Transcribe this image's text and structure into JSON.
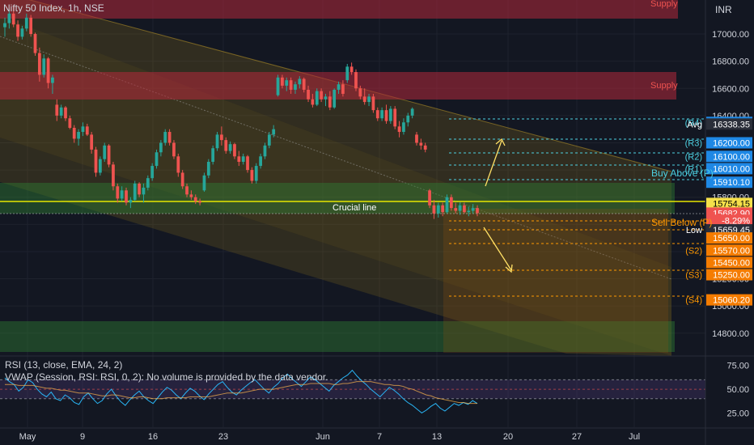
{
  "header": {
    "title": "Nifty 50 Index, 1h, NSE",
    "currency": "INR"
  },
  "colors": {
    "background": "#131722",
    "up": "#26a69a",
    "down": "#ef5350",
    "supply_zone": "#b2283a",
    "demand_zone": "#2e7d32",
    "channel": "#a0801a",
    "pivot_line_top": "#4dd0e1",
    "pivot_line_bottom": "#ff9800",
    "crucial_line": "#e6e600",
    "rsi_line": "#29b6f6"
  },
  "chart_data": {
    "type": "candlestick",
    "symbol": "Nifty 50 Index",
    "timeframe": "1h",
    "exchange": "NSE",
    "y_axis": {
      "ticks": [
        "17000.00",
        "16800.00",
        "16600.00",
        "16400.00",
        "16200.00",
        "16000.00",
        "15800.00",
        "15600.00",
        "15400.00",
        "15200.00",
        "15000.00",
        "14800.00"
      ],
      "range": [
        14650,
        17250
      ]
    },
    "x_axis": {
      "ticks": [
        "May",
        "9",
        "16",
        "23",
        "Jun",
        "7",
        "13",
        "20",
        "27",
        "Jul"
      ]
    },
    "annotations": {
      "supply_label": "Supply",
      "crucial_line_label": "Crucial line",
      "buy_above_label": "Buy Above (P)",
      "sell_below_label": "Sell Below (P)"
    },
    "levels": [
      {
        "label": "(R4)",
        "value": "16350.00",
        "price": 16350,
        "text_color": "#4dd0e1",
        "box_color": "#1e88e5"
      },
      {
        "label": "Avg",
        "value": "16338.35",
        "price": 16338,
        "text_color": "#ffffff",
        "box_color": "#2a2e39"
      },
      {
        "label": "(R3)",
        "value": "16200.00",
        "price": 16200,
        "text_color": "#4dd0e1",
        "box_color": "#1e88e5"
      },
      {
        "label": "(R2)",
        "value": "16100.00",
        "price": 16100,
        "text_color": "#4dd0e1",
        "box_color": "#1e88e5"
      },
      {
        "label": "(R1)",
        "value": "16010.00",
        "price": 16010,
        "text_color": "#4dd0e1",
        "box_color": "#1e88e5"
      },
      {
        "label": "",
        "value": "15910.10",
        "price": 15910,
        "text_color": "#4dd0e1",
        "box_color": "#1e88e5"
      },
      {
        "label": "",
        "value": "15754.15",
        "price": 15754,
        "text_color": "#000000",
        "box_color": "#f5e04a"
      },
      {
        "label": "",
        "value": "15682.90",
        "price": 15683,
        "text_color": "#ffffff",
        "box_color": "#ef5350"
      },
      {
        "label": "",
        "value": "-8.29%",
        "price": 15630,
        "text_color": "#ffffff",
        "box_color": "#ef5350"
      },
      {
        "label": "Low",
        "value": "15659.45",
        "price": 15560,
        "text_color": "#ffffff",
        "box_color": "#2a2e39"
      },
      {
        "label": "",
        "value": "15650.00",
        "price": 15500,
        "text_color": "#ff9800",
        "box_color": "#f57c00"
      },
      {
        "label": "(S2)",
        "value": "15570.00",
        "price": 15410,
        "text_color": "#ff9800",
        "box_color": "#f57c00"
      },
      {
        "label": "",
        "value": "15450.00",
        "price": 15320,
        "text_color": "#ff9800",
        "box_color": "#f57c00"
      },
      {
        "label": "(S3)",
        "value": "15250.00",
        "price": 15230,
        "text_color": "#ff9800",
        "box_color": "#f57c00"
      },
      {
        "label": "(S4)",
        "value": "15060.20",
        "price": 15045,
        "text_color": "#ff9800",
        "box_color": "#f57c00"
      }
    ],
    "candles": [
      {
        "o": 17050,
        "h": 17120,
        "l": 16980,
        "c": 17080
      },
      {
        "o": 17080,
        "h": 17180,
        "l": 17040,
        "c": 17150
      },
      {
        "o": 17150,
        "h": 17200,
        "l": 17050,
        "c": 17070
      },
      {
        "o": 17070,
        "h": 17100,
        "l": 16950,
        "c": 16980
      },
      {
        "o": 16980,
        "h": 17060,
        "l": 16960,
        "c": 17040
      },
      {
        "o": 17040,
        "h": 17150,
        "l": 17020,
        "c": 17120
      },
      {
        "o": 17120,
        "h": 17140,
        "l": 16980,
        "c": 17000
      },
      {
        "o": 17000,
        "h": 17010,
        "l": 16840,
        "c": 16860
      },
      {
        "o": 16860,
        "h": 16900,
        "l": 16650,
        "c": 16700
      },
      {
        "o": 16700,
        "h": 16850,
        "l": 16680,
        "c": 16820
      },
      {
        "o": 16820,
        "h": 16830,
        "l": 16600,
        "c": 16640
      },
      {
        "o": 16640,
        "h": 16700,
        "l": 16560,
        "c": 16680
      },
      {
        "o": 16480,
        "h": 16520,
        "l": 16360,
        "c": 16400
      },
      {
        "o": 16400,
        "h": 16480,
        "l": 16380,
        "c": 16460
      },
      {
        "o": 16460,
        "h": 16470,
        "l": 16360,
        "c": 16380
      },
      {
        "o": 16380,
        "h": 16400,
        "l": 16300,
        "c": 16310
      },
      {
        "o": 16310,
        "h": 16330,
        "l": 16200,
        "c": 16230
      },
      {
        "o": 16230,
        "h": 16300,
        "l": 16180,
        "c": 16280
      },
      {
        "o": 16280,
        "h": 16350,
        "l": 16250,
        "c": 16320
      },
      {
        "o": 16320,
        "h": 16340,
        "l": 16250,
        "c": 16260
      },
      {
        "o": 16260,
        "h": 16280,
        "l": 16120,
        "c": 16150
      },
      {
        "o": 16150,
        "h": 16170,
        "l": 15950,
        "c": 15980
      },
      {
        "o": 15980,
        "h": 16100,
        "l": 15960,
        "c": 16080
      },
      {
        "o": 16080,
        "h": 16200,
        "l": 16060,
        "c": 16180
      },
      {
        "o": 16180,
        "h": 16190,
        "l": 16020,
        "c": 16040
      },
      {
        "o": 16040,
        "h": 16060,
        "l": 15850,
        "c": 15880
      },
      {
        "o": 15880,
        "h": 15900,
        "l": 15760,
        "c": 15790
      },
      {
        "o": 15790,
        "h": 15880,
        "l": 15770,
        "c": 15850
      },
      {
        "o": 15850,
        "h": 15870,
        "l": 15740,
        "c": 15760
      },
      {
        "o": 15760,
        "h": 15800,
        "l": 15720,
        "c": 15780
      },
      {
        "o": 15780,
        "h": 15920,
        "l": 15770,
        "c": 15900
      },
      {
        "o": 15900,
        "h": 15910,
        "l": 15800,
        "c": 15820
      },
      {
        "o": 15820,
        "h": 15900,
        "l": 15760,
        "c": 15870
      },
      {
        "o": 15870,
        "h": 15960,
        "l": 15850,
        "c": 15940
      },
      {
        "o": 15940,
        "h": 16050,
        "l": 15920,
        "c": 16030
      },
      {
        "o": 16030,
        "h": 16150,
        "l": 16010,
        "c": 16130
      },
      {
        "o": 16130,
        "h": 16220,
        "l": 16100,
        "c": 16200
      },
      {
        "o": 16200,
        "h": 16300,
        "l": 16180,
        "c": 16280
      },
      {
        "o": 16280,
        "h": 16300,
        "l": 16180,
        "c": 16200
      },
      {
        "o": 16200,
        "h": 16220,
        "l": 16080,
        "c": 16100
      },
      {
        "o": 16100,
        "h": 16120,
        "l": 15950,
        "c": 15980
      },
      {
        "o": 15980,
        "h": 16000,
        "l": 15860,
        "c": 15880
      },
      {
        "o": 15880,
        "h": 15900,
        "l": 15800,
        "c": 15820
      },
      {
        "o": 15820,
        "h": 15850,
        "l": 15780,
        "c": 15800
      },
      {
        "o": 15800,
        "h": 15820,
        "l": 15750,
        "c": 15770
      },
      {
        "o": 15770,
        "h": 15790,
        "l": 15740,
        "c": 15760
      },
      {
        "o": 15850,
        "h": 15980,
        "l": 15840,
        "c": 15960
      },
      {
        "o": 15960,
        "h": 16080,
        "l": 15940,
        "c": 16060
      },
      {
        "o": 16060,
        "h": 16180,
        "l": 16040,
        "c": 16160
      },
      {
        "o": 16160,
        "h": 16280,
        "l": 16140,
        "c": 16260
      },
      {
        "o": 16260,
        "h": 16320,
        "l": 16180,
        "c": 16220
      },
      {
        "o": 16220,
        "h": 16240,
        "l": 16120,
        "c": 16140
      },
      {
        "o": 16140,
        "h": 16210,
        "l": 16120,
        "c": 16190
      },
      {
        "o": 16190,
        "h": 16200,
        "l": 16080,
        "c": 16100
      },
      {
        "o": 16100,
        "h": 16140,
        "l": 16030,
        "c": 16060
      },
      {
        "o": 16060,
        "h": 16120,
        "l": 16040,
        "c": 16100
      },
      {
        "o": 16100,
        "h": 16110,
        "l": 15980,
        "c": 16000
      },
      {
        "o": 16000,
        "h": 16020,
        "l": 15900,
        "c": 15920
      },
      {
        "o": 15920,
        "h": 16050,
        "l": 15900,
        "c": 16030
      },
      {
        "o": 16030,
        "h": 16120,
        "l": 16010,
        "c": 16100
      },
      {
        "o": 16100,
        "h": 16200,
        "l": 16080,
        "c": 16180
      },
      {
        "o": 16180,
        "h": 16280,
        "l": 16160,
        "c": 16260
      },
      {
        "o": 16260,
        "h": 16330,
        "l": 16240,
        "c": 16300
      },
      {
        "o": 16550,
        "h": 16700,
        "l": 16540,
        "c": 16680
      },
      {
        "o": 16680,
        "h": 16700,
        "l": 16600,
        "c": 16620
      },
      {
        "o": 16620,
        "h": 16680,
        "l": 16580,
        "c": 16660
      },
      {
        "o": 16660,
        "h": 16680,
        "l": 16560,
        "c": 16590
      },
      {
        "o": 16590,
        "h": 16650,
        "l": 16560,
        "c": 16630
      },
      {
        "o": 16630,
        "h": 16690,
        "l": 16600,
        "c": 16670
      },
      {
        "o": 16670,
        "h": 16680,
        "l": 16570,
        "c": 16590
      },
      {
        "o": 16590,
        "h": 16620,
        "l": 16500,
        "c": 16520
      },
      {
        "o": 16520,
        "h": 16560,
        "l": 16460,
        "c": 16480
      },
      {
        "o": 16480,
        "h": 16600,
        "l": 16470,
        "c": 16580
      },
      {
        "o": 16580,
        "h": 16600,
        "l": 16500,
        "c": 16520
      },
      {
        "o": 16520,
        "h": 16560,
        "l": 16470,
        "c": 16540
      },
      {
        "o": 16540,
        "h": 16580,
        "l": 16440,
        "c": 16460
      },
      {
        "o": 16460,
        "h": 16600,
        "l": 16450,
        "c": 16590
      },
      {
        "o": 16590,
        "h": 16650,
        "l": 16560,
        "c": 16630
      },
      {
        "o": 16630,
        "h": 16660,
        "l": 16540,
        "c": 16560
      },
      {
        "o": 16660,
        "h": 16780,
        "l": 16640,
        "c": 16760
      },
      {
        "o": 16760,
        "h": 16790,
        "l": 16700,
        "c": 16720
      },
      {
        "o": 16720,
        "h": 16740,
        "l": 16580,
        "c": 16600
      },
      {
        "o": 16600,
        "h": 16620,
        "l": 16520,
        "c": 16540
      },
      {
        "o": 16540,
        "h": 16600,
        "l": 16480,
        "c": 16500
      },
      {
        "o": 16500,
        "h": 16560,
        "l": 16470,
        "c": 16540
      },
      {
        "o": 16540,
        "h": 16560,
        "l": 16420,
        "c": 16440
      },
      {
        "o": 16440,
        "h": 16460,
        "l": 16360,
        "c": 16380
      },
      {
        "o": 16380,
        "h": 16460,
        "l": 16360,
        "c": 16440
      },
      {
        "o": 16440,
        "h": 16480,
        "l": 16340,
        "c": 16360
      },
      {
        "o": 16360,
        "h": 16470,
        "l": 16340,
        "c": 16450
      },
      {
        "o": 16450,
        "h": 16470,
        "l": 16300,
        "c": 16320
      },
      {
        "o": 16320,
        "h": 16360,
        "l": 16240,
        "c": 16280
      },
      {
        "o": 16280,
        "h": 16380,
        "l": 16260,
        "c": 16350
      },
      {
        "o": 16350,
        "h": 16420,
        "l": 16320,
        "c": 16400
      },
      {
        "o": 16400,
        "h": 16460,
        "l": 16380,
        "c": 16450
      },
      {
        "o": 16260,
        "h": 16280,
        "l": 16180,
        "c": 16200
      },
      {
        "o": 16200,
        "h": 16230,
        "l": 16150,
        "c": 16180
      },
      {
        "o": 16180,
        "h": 16200,
        "l": 16130,
        "c": 16150
      },
      {
        "o": 15850,
        "h": 15860,
        "l": 15720,
        "c": 15740
      },
      {
        "o": 15740,
        "h": 15780,
        "l": 15640,
        "c": 15680
      },
      {
        "o": 15680,
        "h": 15760,
        "l": 15650,
        "c": 15740
      },
      {
        "o": 15740,
        "h": 15760,
        "l": 15660,
        "c": 15690
      },
      {
        "o": 15690,
        "h": 15820,
        "l": 15680,
        "c": 15800
      },
      {
        "o": 15800,
        "h": 15820,
        "l": 15700,
        "c": 15720
      },
      {
        "o": 15720,
        "h": 15760,
        "l": 15680,
        "c": 15700
      },
      {
        "o": 15700,
        "h": 15760,
        "l": 15670,
        "c": 15740
      },
      {
        "o": 15740,
        "h": 15760,
        "l": 15680,
        "c": 15690
      },
      {
        "o": 15690,
        "h": 15730,
        "l": 15660,
        "c": 15700
      },
      {
        "o": 15700,
        "h": 15750,
        "l": 15680,
        "c": 15720
      },
      {
        "o": 15720,
        "h": 15740,
        "l": 15660,
        "c": 15683
      }
    ]
  },
  "indicators": {
    "rsi_label": "RSI (13, close, EMA, 24, 2)",
    "vwap_label": "VWAP (Session, RSI: RSI, 0, 2): No volume is provided by the data vendor.",
    "rsi_ticks": [
      "75.00",
      "50.00",
      "25.00"
    ],
    "rsi_values": [
      62,
      58,
      55,
      48,
      52,
      60,
      57,
      50,
      45,
      42,
      47,
      40,
      38,
      44,
      41,
      36,
      34,
      42,
      46,
      40,
      35,
      38,
      45,
      50,
      43,
      37,
      33,
      39,
      44,
      48,
      42,
      38,
      35,
      41,
      47,
      52,
      49,
      44,
      40,
      46,
      51,
      48,
      43,
      39,
      45,
      50,
      55,
      58,
      52,
      47,
      44,
      49,
      53,
      57,
      60,
      55,
      50,
      46,
      52,
      56,
      62,
      66,
      61,
      57,
      53,
      58,
      63,
      60,
      56,
      52,
      48,
      54,
      58,
      62,
      65,
      70,
      64,
      59,
      55,
      50,
      46,
      42,
      47,
      52,
      49,
      45,
      40,
      36,
      33,
      29,
      25,
      28,
      32,
      35,
      30,
      27,
      31,
      35,
      33,
      36,
      34,
      38,
      35
    ],
    "rsi_ema_values": [
      55,
      55,
      55,
      54,
      54,
      54,
      54,
      53,
      52,
      51,
      51,
      50,
      49,
      49,
      48,
      47,
      46,
      46,
      46,
      45,
      44,
      43,
      43,
      44,
      44,
      43,
      42,
      41,
      41,
      42,
      42,
      41,
      40,
      40,
      40,
      41,
      41,
      41,
      41,
      41,
      42,
      42,
      42,
      42,
      42,
      43,
      44,
      45,
      46,
      46,
      46,
      46,
      47,
      48,
      49,
      50,
      50,
      50,
      50,
      51,
      52,
      53,
      54,
      55,
      55,
      55,
      56,
      56,
      56,
      56,
      56,
      55,
      55,
      56,
      56,
      57,
      58,
      58,
      58,
      58,
      57,
      56,
      55,
      55,
      54,
      54,
      53,
      51,
      50,
      48,
      46,
      44,
      43,
      41,
      40,
      39,
      38,
      37,
      36,
      36,
      35,
      35,
      35
    ]
  }
}
